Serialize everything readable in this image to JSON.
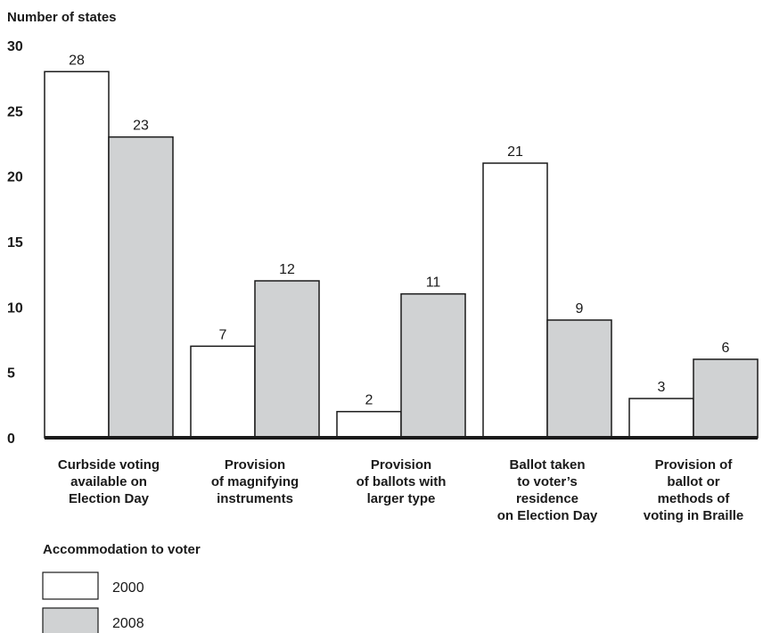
{
  "chart_data": {
    "type": "bar",
    "ylabel": "Number of states",
    "ylim": [
      0,
      30
    ],
    "yticks": [
      0,
      5,
      10,
      15,
      20,
      25,
      30
    ],
    "grid": false,
    "categories": [
      [
        "Curbside voting",
        "available on",
        "Election Day"
      ],
      [
        "Provision",
        "of magnifying",
        "instruments"
      ],
      [
        "Provision",
        "of ballots with",
        "larger type"
      ],
      [
        "Ballot taken",
        "to voter’s",
        "residence",
        "on Election Day"
      ],
      [
        "Provision of",
        "ballot or",
        "methods of",
        "voting in Braille"
      ]
    ],
    "series": [
      {
        "name": "2000",
        "values": [
          28,
          7,
          2,
          21,
          3
        ],
        "color": "#ffffff"
      },
      {
        "name": "2008",
        "values": [
          23,
          12,
          11,
          9,
          6
        ],
        "color": "#d0d2d3"
      }
    ],
    "legend_title": "Accommodation to voter",
    "legend_position": "bottom-left"
  }
}
